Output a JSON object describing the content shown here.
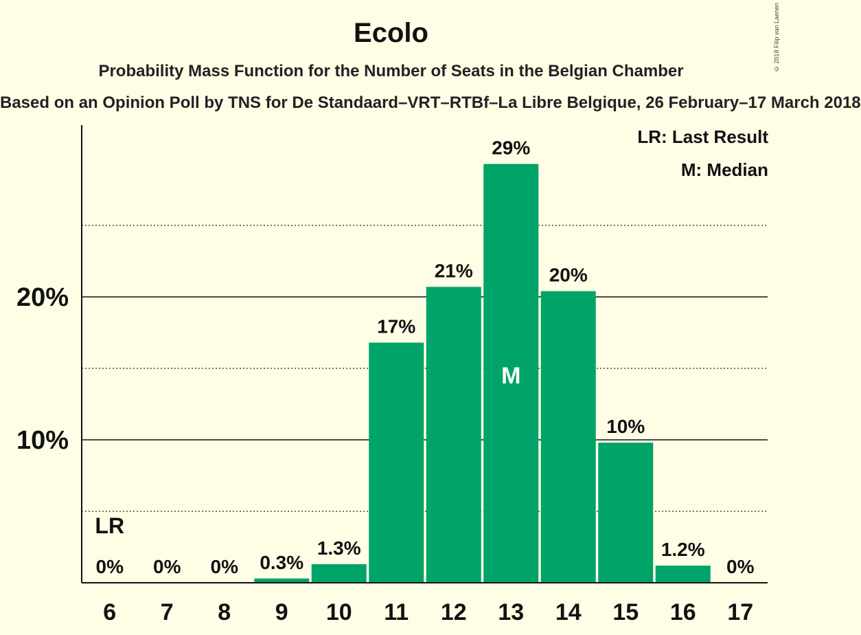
{
  "header": {
    "title": "Ecolo",
    "subtitle": "Probability Mass Function for the Number of Seats in the Belgian Chamber",
    "source": "Based on an Opinion Poll by TNS for De Standaard–VRT–RTBf–La Libre Belgique, 26 February–17 March 2018",
    "copyright": "© 2018 Filip van Laenen"
  },
  "legend": {
    "lr": "LR: Last Result",
    "median": "M: Median"
  },
  "colors": {
    "bar": "#00a468",
    "background": "#fffde6"
  },
  "chart_data": {
    "type": "bar",
    "categories": [
      "6",
      "7",
      "8",
      "9",
      "10",
      "11",
      "12",
      "13",
      "14",
      "15",
      "16",
      "17"
    ],
    "values": [
      0,
      0,
      0,
      0.3,
      1.3,
      16.8,
      20.7,
      29.3,
      20.4,
      9.8,
      1.2,
      0
    ],
    "labels": [
      "0%",
      "0%",
      "0%",
      "0.3%",
      "1.3%",
      "17%",
      "21%",
      "29%",
      "20%",
      "10%",
      "1.2%",
      "0%"
    ],
    "ylim": [
      0,
      32
    ],
    "yticks": [
      10,
      20
    ],
    "ytick_labels": [
      "10%",
      "20%"
    ],
    "minor_gridlines": [
      5,
      15,
      25
    ],
    "last_result": {
      "category": "6",
      "label": "LR"
    },
    "median": {
      "category": "13",
      "label": "M"
    },
    "legend_position": "top-right"
  }
}
